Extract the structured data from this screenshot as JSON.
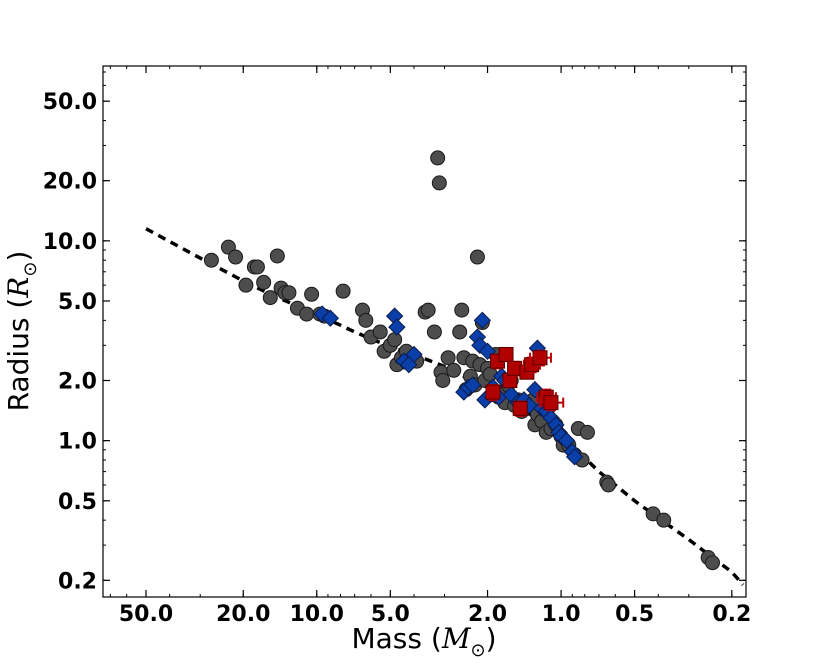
{
  "chart_data": {
    "type": "scatter",
    "xlabel": {
      "pre": "Mass (",
      "sym": "M",
      "sub": "⊙",
      "post": ")"
    },
    "ylabel": {
      "pre": "Radius (",
      "sym": "R",
      "sub": "⊙",
      "post": ")"
    },
    "x_scale": "log",
    "y_scale": "log",
    "x_reversed": true,
    "xlim": [
      75,
      0.175
    ],
    "ylim": [
      0.165,
      75
    ],
    "x_ticks": [
      50,
      20,
      10,
      5,
      2,
      1,
      0.5,
      0.2
    ],
    "x_tick_labels": [
      "50.0",
      "20.0",
      "10.0",
      "5.0",
      "2.0",
      "1.0",
      "0.5",
      "0.2"
    ],
    "y_ticks": [
      50,
      20,
      10,
      5,
      2,
      1,
      0.5,
      0.2
    ],
    "y_tick_labels": [
      "50.0",
      "20.0",
      "10.0",
      "5.0",
      "2.0",
      "1.0",
      "0.5",
      "0.2"
    ],
    "grid": false,
    "legend": "none",
    "colors": {
      "circles": "#4d4d4d",
      "diamonds": "#0a3ea8",
      "squares": "#b00000",
      "errorbars": "#c00000",
      "relation": "#000000"
    },
    "relation_curve": {
      "style": "dashed",
      "x": [
        50,
        30,
        20,
        15,
        10,
        7,
        5,
        4,
        3,
        2.5,
        2,
        1.6,
        1.3,
        1.1,
        1.0,
        0.9,
        0.8,
        0.7,
        0.6,
        0.5,
        0.4,
        0.3,
        0.25,
        0.2,
        0.18
      ],
      "y": [
        11.5,
        8.2,
        6.3,
        5.3,
        4.3,
        3.5,
        2.95,
        2.7,
        2.35,
        2.1,
        1.85,
        1.55,
        1.32,
        1.12,
        1.02,
        0.92,
        0.82,
        0.7,
        0.6,
        0.5,
        0.41,
        0.32,
        0.27,
        0.22,
        0.19
      ]
    },
    "series": [
      {
        "marker": "circle",
        "x": [
          27,
          23,
          21.5,
          19.5,
          18,
          17.5,
          16.5,
          15.5,
          14.5,
          14,
          13.5,
          13,
          12,
          11,
          10.5,
          9.7,
          9.3,
          7.8,
          6.5,
          6.3,
          6.0,
          5.5,
          5.3,
          5.0,
          4.8,
          4.7,
          4.5,
          4.3,
          3.9,
          3.6,
          3.5,
          3.3,
          3.2,
          3.15,
          3.1,
          3.05,
          2.9,
          2.75,
          2.6,
          2.55,
          2.5,
          2.45,
          2.35,
          2.3,
          2.25,
          2.2,
          2.15,
          2.1,
          2.05,
          2.0,
          1.95,
          1.9,
          1.85,
          1.8,
          1.75,
          1.7,
          1.65,
          1.6,
          1.55,
          1.5,
          1.45,
          1.4,
          1.35,
          1.3,
          1.28,
          1.25,
          1.2,
          1.15,
          1.1,
          1.05,
          1.0,
          0.98,
          0.93,
          0.88,
          0.85,
          0.82,
          0.78,
          0.65,
          0.64,
          0.42,
          0.38,
          0.25,
          0.24
        ],
        "y": [
          8.0,
          9.3,
          8.3,
          6.0,
          7.4,
          7.4,
          6.2,
          5.2,
          8.4,
          5.8,
          5.5,
          5.5,
          4.6,
          4.3,
          5.4,
          4.3,
          4.2,
          5.6,
          4.5,
          4.0,
          3.3,
          3.5,
          2.8,
          3.0,
          3.2,
          2.4,
          2.6,
          2.8,
          2.5,
          4.4,
          4.5,
          3.5,
          26,
          19.5,
          2.2,
          2.0,
          2.6,
          2.25,
          3.5,
          4.5,
          2.6,
          1.8,
          2.1,
          2.5,
          1.9,
          8.3,
          2.4,
          3.9,
          2.0,
          2.3,
          2.15,
          1.7,
          2.7,
          1.65,
          1.7,
          1.55,
          1.9,
          2.0,
          1.5,
          1.6,
          1.4,
          1.55,
          1.5,
          1.6,
          1.2,
          1.35,
          1.25,
          1.1,
          1.15,
          1.2,
          1.05,
          0.95,
          0.95,
          0.85,
          1.15,
          0.8,
          1.1,
          0.62,
          0.6,
          0.43,
          0.4,
          0.26,
          0.245
        ]
      },
      {
        "marker": "diamond",
        "x": [
          9.5,
          8.8,
          4.8,
          4.7,
          4.0,
          4.4,
          4.2,
          2.5,
          2.4,
          2.3,
          2.2,
          2.15,
          2.1,
          2.05,
          2.0,
          1.95,
          1.9,
          1.8,
          1.75,
          1.7,
          1.6,
          1.5,
          1.42,
          1.35,
          1.28,
          1.25,
          1.2,
          1.15,
          1.1,
          1.05,
          1.02,
          1.0,
          0.95,
          0.9,
          0.88
        ],
        "y": [
          4.3,
          4.1,
          4.2,
          3.7,
          2.7,
          2.5,
          2.4,
          1.75,
          1.85,
          1.9,
          3.3,
          3.0,
          4.0,
          1.6,
          2.8,
          1.7,
          1.85,
          1.65,
          2.1,
          2.0,
          1.7,
          1.55,
          1.6,
          1.5,
          1.8,
          2.9,
          1.45,
          1.4,
          1.3,
          1.2,
          1.1,
          1.05,
          1.0,
          0.88,
          0.83
        ]
      },
      {
        "marker": "square",
        "x": [
          1.9,
          1.82,
          1.68,
          1.62,
          1.55,
          1.47,
          1.38,
          1.32,
          1.22,
          1.15,
          1.1
        ],
        "y": [
          1.75,
          2.5,
          2.7,
          2.0,
          2.3,
          1.45,
          2.2,
          2.4,
          2.6,
          1.65,
          1.55
        ],
        "x_err": [
          0.1,
          0.08,
          0.08,
          0.07,
          0.07,
          0.07,
          0.07,
          0.1,
          0.12,
          0.1,
          0.12
        ],
        "y_err": [
          0.15,
          0.2,
          0.2,
          0.15,
          0.18,
          0.12,
          0.15,
          0.2,
          0.22,
          0.15,
          0.13
        ]
      }
    ]
  }
}
